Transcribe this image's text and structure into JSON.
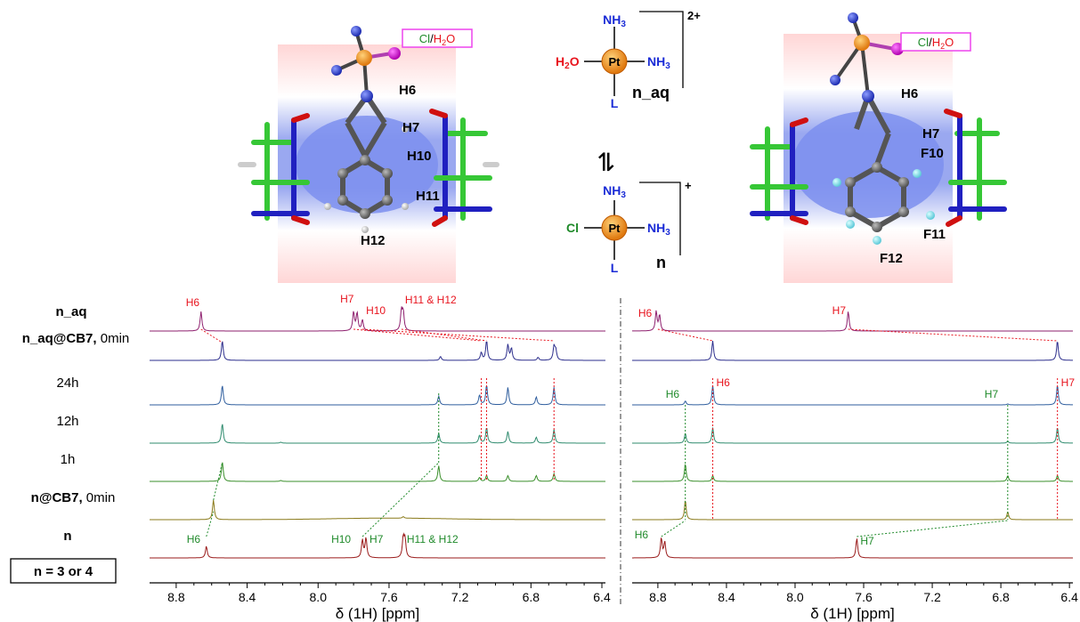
{
  "structures": {
    "left_model": {
      "counterion": "Cl/H2O",
      "labels": [
        "H6",
        "H7",
        "H10",
        "H11",
        "H12"
      ]
    },
    "right_model": {
      "counterion": "Cl/H2O",
      "labels": [
        "H6",
        "H7",
        "F10",
        "F11",
        "F12"
      ]
    },
    "complex_aq": {
      "metal": "Pt",
      "top": "NH3",
      "left": "H2O",
      "right": "NH3",
      "bottom": "L",
      "charge": "2+",
      "name": "n_aq"
    },
    "complex_cl": {
      "metal": "Pt",
      "top": "NH3",
      "left": "Cl",
      "right": "NH3",
      "bottom": "L",
      "charge": "+",
      "name": "n"
    },
    "equilibrium": "⇌"
  },
  "legend_box": "n = 3 or 4",
  "xlabel": "δ (1H) [ppm]",
  "ticks": [
    "8.8",
    "8.4",
    "8.0",
    "7.6",
    "7.2",
    "6.8",
    "6.4"
  ],
  "colors": {
    "n_aq": "#8e1f6e",
    "n_aq@CB7": "#2b2d8c",
    "24h": "#2f5e9e",
    "12h": "#2f8b6e",
    "1h": "#3a8f2b",
    "n@CB7": "#8a7a1a",
    "n": "#9a1b1b",
    "red_label": "#e8141e",
    "green_label": "#1f8a2a"
  },
  "rows": [
    {
      "key": "n_aq",
      "label": "n_aq",
      "suffix": ""
    },
    {
      "key": "n_aq@CB7",
      "label": "n_aq@CB7,",
      "suffix": " 0min"
    },
    {
      "key": "24h",
      "label": "24h",
      "suffix": ""
    },
    {
      "key": "12h",
      "label": "12h",
      "suffix": ""
    },
    {
      "key": "1h",
      "label": "1h",
      "suffix": ""
    },
    {
      "key": "n@CB7",
      "label": "n@CB7,",
      "suffix": " 0min"
    },
    {
      "key": "n",
      "label": "n",
      "suffix": ""
    }
  ],
  "chart_data": [
    {
      "type": "line",
      "panel": "left",
      "xlabel": "δ (1H) [ppm]",
      "xlim": [
        8.95,
        6.38
      ],
      "xticks": [
        8.8,
        8.4,
        8.0,
        7.6,
        7.2,
        6.8,
        6.4
      ],
      "series": [
        {
          "name": "n_aq",
          "peaks": [
            [
              8.66,
              1.0
            ],
            [
              7.8,
              0.95
            ],
            [
              7.78,
              0.9
            ],
            [
              7.75,
              0.55
            ],
            [
              7.53,
              1.0
            ],
            [
              7.52,
              0.9
            ]
          ]
        },
        {
          "name": "n_aq@CB7, 0min",
          "peaks": [
            [
              8.54,
              1.0
            ],
            [
              7.31,
              0.2
            ],
            [
              7.08,
              0.4
            ],
            [
              7.05,
              1.0
            ],
            [
              6.93,
              0.8
            ],
            [
              6.91,
              0.6
            ],
            [
              6.76,
              0.15
            ],
            [
              6.67,
              0.7
            ],
            [
              6.66,
              0.5
            ]
          ]
        },
        {
          "name": "24h",
          "peaks": [
            [
              8.54,
              1.0
            ],
            [
              7.32,
              0.45
            ],
            [
              7.09,
              0.5
            ],
            [
              7.05,
              1.0
            ],
            [
              6.93,
              0.9
            ],
            [
              6.77,
              0.4
            ],
            [
              6.67,
              0.9
            ]
          ]
        },
        {
          "name": "12h",
          "peaks": [
            [
              8.54,
              1.0
            ],
            [
              8.21,
              0.05
            ],
            [
              7.32,
              0.5
            ],
            [
              7.09,
              0.4
            ],
            [
              7.05,
              0.8
            ],
            [
              6.93,
              0.6
            ],
            [
              6.77,
              0.3
            ],
            [
              6.67,
              0.7
            ]
          ]
        },
        {
          "name": "1h",
          "peaks": [
            [
              8.54,
              1.0
            ],
            [
              8.21,
              0.05
            ],
            [
              7.32,
              0.8
            ],
            [
              7.09,
              0.2
            ],
            [
              7.05,
              0.3
            ],
            [
              6.93,
              0.3
            ],
            [
              6.77,
              0.3
            ],
            [
              6.67,
              0.4
            ]
          ]
        },
        {
          "name": "n@CB7, 0min",
          "peaks": [
            [
              8.59,
              1.0
            ],
            [
              7.52,
              0.08
            ]
          ]
        },
        {
          "name": "n",
          "peaks": [
            [
              8.63,
              0.6
            ],
            [
              7.75,
              0.9
            ],
            [
              7.73,
              1.0
            ],
            [
              7.52,
              1.0
            ],
            [
              7.51,
              0.9
            ]
          ]
        }
      ],
      "annotations_red": [
        "H6",
        "H7",
        "H10",
        "H11 & H12"
      ],
      "annotations_green": [
        "H6",
        "H10",
        "H7",
        "H11 & H12"
      ]
    },
    {
      "type": "line",
      "panel": "right",
      "xlabel": "δ (1H) [ppm]",
      "xlim": [
        8.95,
        6.38
      ],
      "xticks": [
        8.8,
        8.4,
        8.0,
        7.6,
        7.2,
        6.8,
        6.4
      ],
      "series": [
        {
          "name": "n_aq",
          "peaks": [
            [
              8.81,
              1.0
            ],
            [
              8.79,
              0.8
            ],
            [
              7.69,
              1.0
            ]
          ]
        },
        {
          "name": "n_aq@CB7, 0min",
          "peaks": [
            [
              8.48,
              1.0
            ],
            [
              6.47,
              1.0
            ]
          ]
        },
        {
          "name": "24h",
          "peaks": [
            [
              8.64,
              0.2
            ],
            [
              8.48,
              1.0
            ],
            [
              6.76,
              0.05
            ],
            [
              6.47,
              1.0
            ]
          ]
        },
        {
          "name": "12h",
          "peaks": [
            [
              8.64,
              0.5
            ],
            [
              8.48,
              0.8
            ],
            [
              6.76,
              0.1
            ],
            [
              6.47,
              0.8
            ]
          ]
        },
        {
          "name": "1h",
          "peaks": [
            [
              8.64,
              0.9
            ],
            [
              8.48,
              0.3
            ],
            [
              6.76,
              0.3
            ],
            [
              6.47,
              0.3
            ]
          ]
        },
        {
          "name": "n@CB7, 0min",
          "peaks": [
            [
              8.64,
              1.0
            ],
            [
              6.76,
              0.4
            ]
          ]
        },
        {
          "name": "n",
          "peaks": [
            [
              8.78,
              1.0
            ],
            [
              8.76,
              0.8
            ],
            [
              7.64,
              1.0
            ]
          ]
        }
      ],
      "annotations_red": [
        "H6",
        "H7",
        "H6",
        "H7"
      ],
      "annotations_green": [
        "H6",
        "H7",
        "H6",
        "H7"
      ]
    }
  ]
}
